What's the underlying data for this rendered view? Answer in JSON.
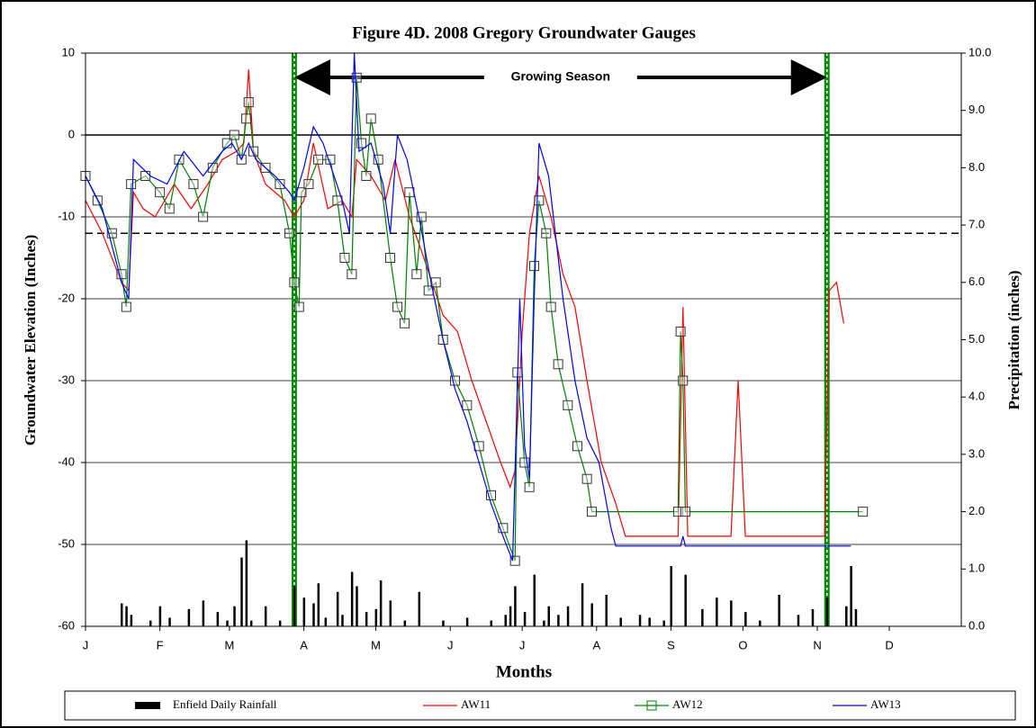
{
  "chart_data": {
    "type": "line",
    "title": "Figure 4D.  2008 Gregory Groundwater Gauges",
    "xlabel": "Months",
    "ylabel": "Groundwater Elevation (Inches)",
    "y2label": "Precipitation (inches)",
    "annotation": "Growing Season",
    "growing_season": [
      88,
      310
    ],
    "reference_lines": [
      {
        "value": 0,
        "style": "solid"
      },
      {
        "value": -12,
        "style": "dashed"
      }
    ],
    "xlim": [
      1,
      366
    ],
    "xticks": [
      {
        "value": 1,
        "label": "J"
      },
      {
        "value": 32,
        "label": "F"
      },
      {
        "value": 61,
        "label": "M"
      },
      {
        "value": 92,
        "label": "A"
      },
      {
        "value": 122,
        "label": "M"
      },
      {
        "value": 153,
        "label": "J"
      },
      {
        "value": 183,
        "label": "J"
      },
      {
        "value": 214,
        "label": "A"
      },
      {
        "value": 245,
        "label": "S"
      },
      {
        "value": 275,
        "label": "O"
      },
      {
        "value": 306,
        "label": "N"
      },
      {
        "value": 336,
        "label": "D"
      }
    ],
    "ylim": [
      -60,
      10
    ],
    "yticks": [
      -60,
      -50,
      -40,
      -30,
      -20,
      -10,
      0,
      10
    ],
    "y2lim": [
      0,
      10
    ],
    "y2ticks": [
      {
        "value": 0,
        "label": "0.0"
      },
      {
        "value": 1,
        "label": "1.0"
      },
      {
        "value": 2,
        "label": "2.0"
      },
      {
        "value": 3,
        "label": "3.0"
      },
      {
        "value": 4,
        "label": "4.0"
      },
      {
        "value": 5,
        "label": "5.0"
      },
      {
        "value": 6,
        "label": "6.0"
      },
      {
        "value": 7,
        "label": "7.0"
      },
      {
        "value": 8,
        "label": "8.0"
      },
      {
        "value": 9,
        "label": "9.0"
      },
      {
        "value": 10,
        "label": "10.0"
      }
    ],
    "grid": true,
    "legend": "bottom",
    "series": [
      {
        "name": "Enfield Daily Rainfall",
        "color": "#000000",
        "type": "bar",
        "axis": "y2",
        "x": [
          16,
          18,
          20,
          28,
          32,
          36,
          44,
          50,
          56,
          60,
          63,
          66,
          68,
          70,
          76,
          82,
          88,
          92,
          96,
          98,
          101,
          106,
          108,
          112,
          114,
          118,
          122,
          124,
          128,
          134,
          140,
          150,
          160,
          170,
          176,
          178,
          180,
          184,
          188,
          192,
          194,
          198,
          202,
          208,
          212,
          218,
          224,
          232,
          236,
          242,
          245,
          251,
          258,
          264,
          270,
          276,
          282,
          290,
          298,
          304,
          310,
          318,
          320,
          322
        ],
        "values": [
          0.4,
          0.35,
          0.2,
          0.1,
          0.35,
          0.15,
          0.3,
          0.45,
          0.25,
          0.1,
          0.35,
          1.2,
          1.5,
          0.1,
          0.35,
          0.1,
          0.7,
          0.5,
          0.4,
          0.75,
          0.15,
          0.6,
          0.2,
          0.95,
          0.7,
          0.25,
          0.3,
          0.8,
          0.45,
          0.1,
          0.6,
          0.1,
          0.15,
          0.1,
          0.2,
          0.35,
          0.7,
          0.25,
          0.9,
          0.1,
          0.35,
          0.2,
          0.35,
          0.75,
          0.4,
          0.55,
          0.15,
          0.2,
          0.15,
          0.1,
          1.05,
          0.9,
          0.3,
          0.5,
          0.45,
          0.25,
          0.1,
          0.55,
          0.2,
          0.3,
          0.5,
          0.35,
          1.05,
          0.3
        ]
      },
      {
        "name": "AW11",
        "color": "#ff0000",
        "x": [
          1,
          8,
          16,
          19,
          21,
          25,
          30,
          38,
          45,
          52,
          58,
          64,
          67,
          69,
          71,
          76,
          84,
          88,
          92,
          96,
          102,
          108,
          112,
          114,
          120,
          126,
          130,
          136,
          142,
          150,
          156,
          162,
          168,
          174,
          178,
          180,
          183,
          186,
          190,
          195,
          200,
          205,
          210,
          216,
          222,
          226,
          248,
          250,
          252,
          270,
          273,
          276,
          309,
          311,
          314,
          317
        ],
        "values": [
          -8,
          -12,
          -18,
          -19,
          -7,
          -9,
          -10,
          -6,
          -9,
          -6,
          -3,
          -2,
          -1,
          8,
          -2,
          -6,
          -8,
          -10,
          -8,
          -1,
          -9,
          -8,
          -10,
          -3,
          -5,
          -8,
          -3,
          -10,
          -15,
          -22,
          -24,
          -30,
          -35,
          -40,
          -43,
          -41,
          -24,
          -12,
          -5,
          -10,
          -17,
          -21,
          -30,
          -40,
          -45,
          -49,
          -49,
          -21,
          -49,
          -49,
          -30,
          -49,
          -49,
          -19,
          -18,
          -23
        ]
      },
      {
        "name": "AW12",
        "color": "#008000",
        "marker": "square",
        "x": [
          1,
          6,
          12,
          16,
          18,
          20,
          26,
          32,
          36,
          40,
          46,
          50,
          54,
          60,
          63,
          66,
          68,
          69,
          71,
          76,
          82,
          86,
          88,
          90,
          91,
          94,
          98,
          103,
          106,
          109,
          112,
          114,
          116,
          118,
          120,
          123,
          128,
          131,
          134,
          136,
          139,
          141,
          144,
          147,
          150,
          155,
          160,
          165,
          170,
          175,
          180,
          181,
          184,
          186,
          188,
          190,
          193,
          195,
          198,
          202,
          206,
          210,
          212,
          248,
          249,
          250,
          251,
          325
        ],
        "values": [
          -5,
          -8,
          -12,
          -17,
          -21,
          -6,
          -5,
          -7,
          -9,
          -3,
          -6,
          -10,
          -4,
          -1,
          0,
          -3,
          2,
          4,
          -2,
          -4,
          -6,
          -12,
          -18,
          -21,
          -7,
          -6,
          -3,
          -3,
          -8,
          -15,
          -17,
          7,
          -1,
          -5,
          2,
          -3,
          -15,
          -21,
          -23,
          -7,
          -17,
          -10,
          -19,
          -18,
          -25,
          -30,
          -33,
          -38,
          -44,
          -48,
          -52,
          -29,
          -40,
          -43,
          -16,
          -8,
          -12,
          -21,
          -28,
          -33,
          -38,
          -42,
          -46,
          -46,
          -24,
          -30,
          -46,
          -46
        ]
      },
      {
        "name": "AW13",
        "color": "#0000ff",
        "x": [
          1,
          8,
          16,
          19,
          21,
          28,
          35,
          42,
          50,
          58,
          62,
          66,
          69,
          72,
          80,
          86,
          88,
          92,
          96,
          100,
          108,
          111,
          113,
          115,
          120,
          125,
          128,
          131,
          135,
          140,
          145,
          150,
          155,
          160,
          165,
          170,
          175,
          179,
          182,
          184,
          186,
          188,
          190,
          194,
          200,
          205,
          210,
          215,
          220,
          222,
          249,
          250,
          251,
          320
        ],
        "values": [
          -5,
          -9,
          -18,
          -20,
          -3,
          -5,
          -6,
          -2,
          -5,
          -2,
          -1,
          -3,
          -1,
          -3,
          -5,
          -7,
          -8,
          -4,
          1,
          -1,
          -8,
          -12,
          10,
          -2,
          -1,
          -6,
          -12,
          0,
          -3,
          -10,
          -18,
          -25,
          -31,
          -35,
          -40,
          -45,
          -49,
          -52,
          -20,
          -38,
          -42,
          -20,
          -1,
          -5,
          -20,
          -30,
          -37,
          -40,
          -48,
          -50.2,
          -50.2,
          -49,
          -50.2,
          -50.2
        ]
      }
    ]
  }
}
